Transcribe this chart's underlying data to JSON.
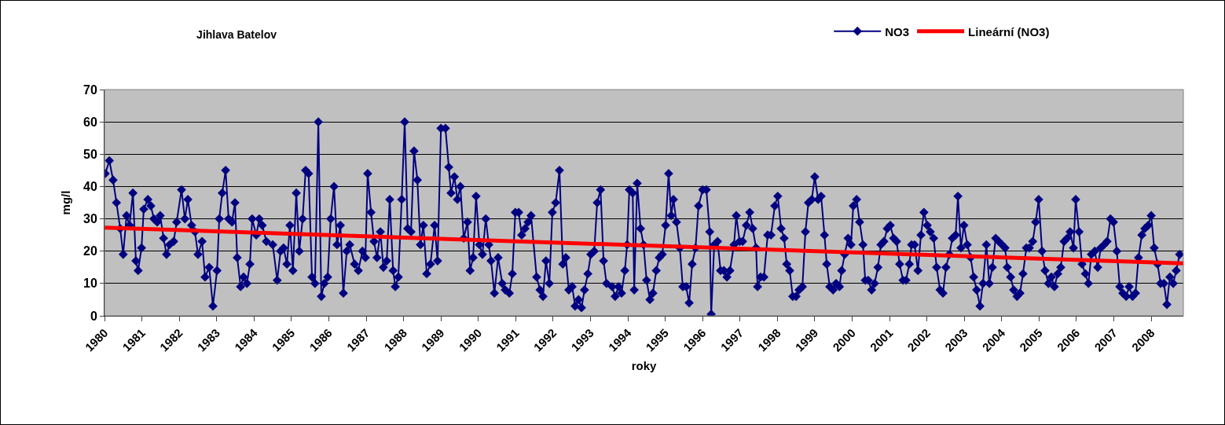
{
  "chart_data": {
    "type": "line",
    "title": "Jihlava Batelov",
    "xlabel": "roky",
    "ylabel": "mg/l",
    "xlim": [
      1980,
      2008.86
    ],
    "xticks": [
      1980,
      1981,
      1982,
      1983,
      1984,
      1985,
      1986,
      1987,
      1988,
      1989,
      1990,
      1991,
      1992,
      1993,
      1994,
      1995,
      1996,
      1997,
      1998,
      1999,
      2000,
      2001,
      2002,
      2003,
      2004,
      2005,
      2006,
      2007,
      2008
    ],
    "ylim": [
      0,
      70
    ],
    "yticks": [
      0,
      10,
      20,
      30,
      40,
      50,
      60,
      70
    ],
    "grid": "y",
    "legend": "top right",
    "series": [
      {
        "name": "NO3",
        "color": "#000080",
        "marker": "diamond",
        "line_style": "solid",
        "x": [
          1980.02,
          1980.13,
          1980.23,
          1980.32,
          1980.42,
          1980.5,
          1980.59,
          1980.67,
          1980.76,
          1980.84,
          1980.9,
          1980.99,
          1981.05,
          1981.16,
          1981.24,
          1981.32,
          1981.41,
          1981.49,
          1981.58,
          1981.66,
          1981.74,
          1981.85,
          1981.93,
          1982.06,
          1982.15,
          1982.23,
          1982.33,
          1982.42,
          1982.5,
          1982.61,
          1982.69,
          1982.8,
          1982.9,
          1983.01,
          1983.07,
          1983.15,
          1983.24,
          1983.32,
          1983.41,
          1983.49,
          1983.55,
          1983.64,
          1983.72,
          1983.81,
          1983.89,
          1983.95,
          1984.06,
          1984.14,
          1984.22,
          1984.33,
          1984.5,
          1984.62,
          1984.71,
          1984.79,
          1984.88,
          1984.96,
          1985.04,
          1985.13,
          1985.21,
          1985.3,
          1985.38,
          1985.46,
          1985.55,
          1985.63,
          1985.72,
          1985.8,
          1985.88,
          1985.97,
          1986.05,
          1986.14,
          1986.22,
          1986.31,
          1986.39,
          1986.48,
          1986.56,
          1986.69,
          1986.79,
          1986.9,
          1986.98,
          1987.04,
          1987.13,
          1987.21,
          1987.29,
          1987.38,
          1987.46,
          1987.55,
          1987.63,
          1987.72,
          1987.78,
          1987.86,
          1987.95,
          1988.03,
          1988.11,
          1988.2,
          1988.28,
          1988.37,
          1988.45,
          1988.53,
          1988.62,
          1988.72,
          1988.83,
          1988.91,
          1989.0,
          1989.12,
          1989.21,
          1989.27,
          1989.36,
          1989.44,
          1989.52,
          1989.61,
          1989.71,
          1989.78,
          1989.86,
          1989.94,
          1990.03,
          1990.11,
          1990.2,
          1990.28,
          1990.34,
          1990.43,
          1990.53,
          1990.64,
          1990.72,
          1990.83,
          1990.91,
          1990.99,
          1991.08,
          1991.16,
          1991.25,
          1991.33,
          1991.41,
          1991.56,
          1991.65,
          1991.73,
          1991.81,
          1991.9,
          1991.98,
          1992.07,
          1992.17,
          1992.26,
          1992.34,
          1992.42,
          1992.51,
          1992.59,
          1992.68,
          1992.76,
          1992.84,
          1992.93,
          1993.01,
          1993.1,
          1993.18,
          1993.27,
          1993.35,
          1993.43,
          1993.58,
          1993.66,
          1993.75,
          1993.83,
          1993.92,
          1993.98,
          1994.04,
          1994.13,
          1994.17,
          1994.25,
          1994.34,
          1994.42,
          1994.5,
          1994.59,
          1994.67,
          1994.76,
          1994.84,
          1994.92,
          1995.01,
          1995.09,
          1995.16,
          1995.22,
          1995.3,
          1995.39,
          1995.47,
          1995.56,
          1995.64,
          1995.72,
          1995.81,
          1995.89,
          1996.0,
          1996.1,
          1996.19,
          1996.23,
          1996.31,
          1996.4,
          1996.48,
          1996.57,
          1996.65,
          1996.73,
          1996.84,
          1996.9,
          1996.99,
          1997.07,
          1997.17,
          1997.26,
          1997.34,
          1997.43,
          1997.47,
          1997.55,
          1997.64,
          1997.74,
          1997.83,
          1997.93,
          1998.01,
          1998.1,
          1998.18,
          1998.25,
          1998.33,
          1998.41,
          1998.5,
          1998.58,
          1998.67,
          1998.75,
          1998.83,
          1998.92,
          1999.0,
          1999.09,
          1999.17,
          1999.26,
          1999.32,
          1999.4,
          1999.49,
          1999.57,
          1999.66,
          1999.72,
          1999.8,
          1999.89,
          1999.97,
          2000.03,
          2000.12,
          2000.2,
          2000.29,
          2000.35,
          2000.43,
          2000.52,
          2000.6,
          2000.69,
          2000.77,
          2000.85,
          2000.94,
          2001.02,
          2001.11,
          2001.19,
          2001.27,
          2001.36,
          2001.44,
          2001.53,
          2001.59,
          2001.67,
          2001.76,
          2001.84,
          2001.92,
          2002.01,
          2002.09,
          2002.18,
          2002.26,
          2002.35,
          2002.43,
          2002.51,
          2002.6,
          2002.68,
          2002.77,
          2002.83,
          2002.91,
          2002.99,
          2003.08,
          2003.17,
          2003.25,
          2003.33,
          2003.42,
          2003.5,
          2003.59,
          2003.67,
          2003.75,
          2003.84,
          2003.92,
          2004.01,
          2004.09,
          2004.15,
          2004.24,
          2004.32,
          2004.41,
          2004.49,
          2004.57,
          2004.66,
          2004.74,
          2004.83,
          2004.91,
          2004.99,
          2005.08,
          2005.16,
          2005.25,
          2005.33,
          2005.41,
          2005.5,
          2005.58,
          2005.67,
          2005.75,
          2005.83,
          2005.92,
          2005.98,
          2006.07,
          2006.15,
          2006.24,
          2006.32,
          2006.4,
          2006.49,
          2006.57,
          2006.65,
          2006.74,
          2006.82,
          2006.91,
          2006.99,
          2007.08,
          2007.16,
          2007.24,
          2007.33,
          2007.41,
          2007.5,
          2007.58,
          2007.66,
          2007.75,
          2007.83,
          2007.92,
          2008.0,
          2008.08,
          2008.17,
          2008.25,
          2008.34,
          2008.42,
          2008.5,
          2008.59,
          2008.67,
          2008.76
        ],
        "values": [
          44,
          48,
          42,
          35,
          27,
          19,
          31,
          28,
          38,
          17,
          14,
          21,
          33,
          36,
          34,
          30,
          29,
          31,
          24,
          19,
          22,
          23,
          29,
          39,
          30,
          36,
          28,
          26,
          19,
          23,
          12,
          15,
          3,
          14,
          30,
          38,
          45,
          30,
          29,
          35,
          18,
          9,
          12,
          10,
          16,
          30,
          25,
          30,
          28,
          23,
          22,
          11,
          20,
          21,
          16,
          28,
          14,
          38,
          20,
          30,
          45,
          44,
          12,
          10,
          60,
          6,
          10,
          12,
          30,
          40,
          22,
          28,
          7,
          20,
          22,
          16,
          14,
          20,
          18,
          44,
          32,
          23,
          18,
          26,
          15,
          17,
          36,
          14,
          9,
          12,
          36,
          60,
          27,
          26,
          51,
          42,
          22,
          28,
          13,
          16,
          28,
          17,
          58,
          58,
          46,
          38,
          43,
          36,
          40,
          24,
          29,
          14,
          18,
          37,
          22,
          19,
          30,
          22,
          17,
          7,
          18,
          10,
          8,
          7,
          13,
          32,
          32,
          25,
          27,
          29,
          31,
          12,
          8,
          6,
          17,
          10,
          32,
          35,
          45,
          16,
          18,
          8,
          9,
          3,
          5,
          2.5,
          8,
          13,
          19,
          20,
          35,
          39,
          17,
          10,
          9,
          6,
          9,
          7,
          14,
          22,
          39,
          38,
          8,
          41,
          27,
          22,
          11,
          5,
          7,
          14,
          18,
          19,
          28,
          44,
          31,
          36,
          29,
          21,
          9,
          9,
          4,
          16,
          21,
          34,
          39,
          39,
          26,
          0.5,
          22,
          23,
          14,
          14,
          12,
          14,
          22,
          31,
          23,
          23,
          28,
          32,
          27,
          21,
          9,
          12,
          12,
          25,
          25,
          34,
          37,
          27,
          24,
          16,
          14,
          6,
          6,
          8,
          9,
          26,
          35,
          36,
          43,
          36,
          37,
          25,
          16,
          9,
          8,
          10,
          9,
          14,
          19,
          24,
          22,
          34,
          36,
          29,
          22,
          11,
          11,
          8,
          10,
          15,
          22,
          23,
          27,
          28,
          24,
          23,
          16,
          11,
          11,
          16,
          22,
          22,
          14,
          25,
          32,
          28,
          26,
          24,
          15,
          8,
          7,
          15,
          19,
          24,
          25,
          37,
          21,
          28,
          22,
          18,
          12,
          8,
          3,
          10,
          22,
          10,
          15,
          24,
          23,
          22,
          21,
          15,
          12,
          8,
          6,
          7,
          13,
          21,
          21,
          23,
          29,
          36,
          20,
          14,
          10,
          12,
          9,
          13,
          15,
          23,
          24,
          26,
          21,
          36,
          26,
          16,
          13,
          10,
          19,
          20,
          15,
          21,
          22,
          23,
          30,
          29,
          20,
          9,
          7,
          6,
          9,
          6,
          7,
          18,
          25,
          27,
          28,
          31,
          21,
          16,
          10,
          10,
          3.5,
          12,
          10,
          14,
          19
        ]
      },
      {
        "name": "Lineární (NO3)",
        "color": "#ff0000",
        "line_style": "solid",
        "x": [
          1980,
          2008.86
        ],
        "values": [
          27.3,
          16.2
        ]
      }
    ]
  }
}
